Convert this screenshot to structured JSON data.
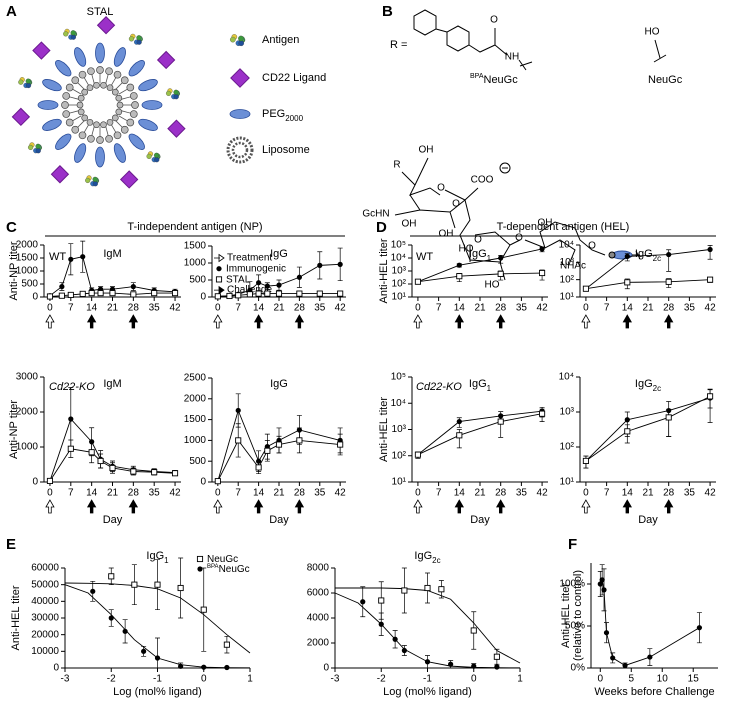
{
  "figure": {
    "panel_letters": [
      "A",
      "B",
      "C",
      "D",
      "E",
      "F"
    ],
    "panel_a": {
      "title": "STAL",
      "legend": [
        "Antigen",
        "CD22 Ligand",
        "PEG",
        "Liposome"
      ],
      "peg_sub": "2000"
    },
    "panel_b": {
      "r_eq": "R =",
      "bpa_sup": "BPA",
      "bpa_name": "NeuGc",
      "neugc": "NeuGc",
      "atoms": [
        "O",
        "NH",
        "HO",
        "R",
        "OH",
        "GcHN",
        "OH",
        "OH",
        "O",
        "COO",
        "O",
        "HO",
        "HO",
        "O",
        "O",
        "OH",
        "NHAc",
        "O"
      ]
    },
    "headers": [
      "T-independent antigen (NP)",
      "T-dependent antigen (HEL)"
    ]
  },
  "chart_data": [
    {
      "type": "line",
      "title": "IgM",
      "label": "WT",
      "ylabel": "Anti-NP titer",
      "connect": true,
      "xlim": [
        -2,
        44
      ],
      "xticks": [
        0,
        7,
        14,
        21,
        28,
        35,
        42
      ],
      "ylim": [
        0,
        2000
      ],
      "yticks": [
        0,
        500,
        1000,
        1500,
        2000
      ],
      "x": [
        0,
        4,
        7,
        11,
        14,
        17,
        21,
        28,
        35,
        42
      ],
      "series": [
        {
          "name": "Immunogenic",
          "marker": "circle",
          "color": "#000",
          "values": [
            50,
            400,
            1450,
            1550,
            250,
            300,
            300,
            400,
            250,
            200
          ],
          "errors": [
            20,
            150,
            600,
            600,
            100,
            100,
            100,
            150,
            100,
            100
          ]
        },
        {
          "name": "STAL",
          "marker": "square",
          "color": "#000",
          "values": [
            20,
            50,
            80,
            120,
            150,
            150,
            150,
            100,
            150,
            150
          ],
          "errors": [
            10,
            20,
            30,
            40,
            40,
            40,
            40,
            40,
            40,
            40
          ]
        }
      ],
      "treatment_label": "Treatment",
      "challenge_label": "Challenge",
      "treatment_days": [
        0
      ],
      "challenge_days": [
        14,
        28
      ]
    },
    {
      "type": "line",
      "title": "IgG",
      "connect": true,
      "xlim": [
        -2,
        44
      ],
      "xticks": [
        0,
        7,
        14,
        21,
        28,
        35,
        42
      ],
      "ylim": [
        0,
        1500
      ],
      "yticks": [
        0,
        500,
        1000,
        1500
      ],
      "x": [
        0,
        4,
        7,
        11,
        14,
        17,
        21,
        28,
        35,
        42
      ],
      "series": [
        {
          "marker": "circle",
          "color": "#000",
          "values": [
            20,
            40,
            80,
            200,
            420,
            320,
            350,
            580,
            930,
            960
          ],
          "errors": [
            10,
            20,
            40,
            250,
            230,
            100,
            150,
            300,
            400,
            480
          ]
        },
        {
          "marker": "square",
          "color": "#000",
          "values": [
            20,
            30,
            50,
            80,
            100,
            100,
            100,
            100,
            100,
            100
          ],
          "errors": [
            5,
            10,
            20,
            30,
            40,
            40,
            40,
            50,
            60,
            70
          ]
        }
      ],
      "treatment_days": [
        0
      ],
      "challenge_days": [
        14,
        28
      ]
    },
    {
      "type": "line",
      "title": "IgM",
      "label": "Cd22-KO",
      "label_italic": true,
      "ylabel": "Anti-NP titer",
      "xlabel": "Day",
      "connect": true,
      "xlim": [
        -2,
        44
      ],
      "xticks": [
        0,
        7,
        14,
        21,
        28,
        35,
        42
      ],
      "ylim": [
        0,
        3000
      ],
      "yticks": [
        0,
        1000,
        2000,
        3000
      ],
      "x": [
        0,
        7,
        14,
        17,
        21,
        28,
        35,
        42
      ],
      "series": [
        {
          "marker": "circle",
          "color": "#000",
          "values": [
            30,
            1800,
            1150,
            650,
            450,
            350,
            300,
            270
          ],
          "errors": [
            20,
            900,
            400,
            250,
            150,
            100,
            80,
            60
          ]
        },
        {
          "marker": "square",
          "color": "#000",
          "values": [
            30,
            950,
            850,
            600,
            400,
            300,
            280,
            250
          ],
          "errors": [
            20,
            250,
            300,
            200,
            150,
            100,
            80,
            60
          ]
        }
      ],
      "treatment_days": [
        0
      ],
      "challenge_days": [
        14,
        28
      ]
    },
    {
      "type": "line",
      "title": "IgG",
      "xlabel": "Day",
      "connect": true,
      "xlim": [
        -2,
        44
      ],
      "xticks": [
        0,
        7,
        14,
        21,
        28,
        35,
        42
      ],
      "ylim": [
        0,
        2500
      ],
      "yticks": [
        0,
        500,
        1000,
        1500,
        2000,
        2500
      ],
      "x": [
        0,
        7,
        14,
        17,
        21,
        28,
        42
      ],
      "series": [
        {
          "marker": "circle",
          "color": "#000",
          "values": [
            20,
            1720,
            500,
            850,
            1000,
            1250,
            1000
          ],
          "errors": [
            10,
            400,
            250,
            300,
            300,
            350,
            300
          ]
        },
        {
          "marker": "square",
          "color": "#000",
          "values": [
            20,
            1000,
            350,
            750,
            900,
            1000,
            900
          ],
          "errors": [
            10,
            400,
            150,
            250,
            200,
            300,
            250
          ]
        }
      ],
      "treatment_days": [
        0
      ],
      "challenge_days": [
        14,
        28
      ]
    },
    {
      "type": "line",
      "title": "IgG",
      "title_sub": "1",
      "label": "WT",
      "ylabel": "Anti-HEL titer",
      "connect": true,
      "log": true,
      "xlim": [
        -2,
        44
      ],
      "xticks": [
        0,
        7,
        14,
        21,
        28,
        35,
        42
      ],
      "ylim": [
        10,
        100000
      ],
      "yticks": [
        {
          "value": 10,
          "label": "10¹"
        },
        {
          "value": 100,
          "label": "10²"
        },
        {
          "value": 1000,
          "label": "10³"
        },
        {
          "value": 10000,
          "label": "10⁴"
        },
        {
          "value": 100000,
          "label": "10⁵"
        }
      ],
      "x": [
        0,
        14,
        28,
        42
      ],
      "series": [
        {
          "marker": "circle",
          "color": "#000",
          "values": [
            150,
            2800,
            10000,
            50000
          ],
          "errors": [
            50,
            800,
            6000,
            20000
          ]
        },
        {
          "marker": "square",
          "color": "#000",
          "values": [
            150,
            400,
            600,
            700
          ],
          "errors": [
            40,
            250,
            400,
            500
          ]
        }
      ],
      "treatment_days": [
        0
      ],
      "challenge_days": [
        14,
        28
      ]
    },
    {
      "type": "line",
      "title": "IgG",
      "title_sub": "2c",
      "connect": true,
      "log": true,
      "xlim": [
        -2,
        44
      ],
      "xticks": [
        0,
        7,
        14,
        21,
        28,
        35,
        42
      ],
      "ylim": [
        10,
        10000
      ],
      "yticks": [
        {
          "value": 10,
          "label": "10¹"
        },
        {
          "value": 100,
          "label": "10²"
        },
        {
          "value": 1000,
          "label": "10³"
        },
        {
          "value": 10000,
          "label": "10⁴"
        }
      ],
      "x": [
        0,
        14,
        28,
        42
      ],
      "series": [
        {
          "marker": "circle",
          "color": "#000",
          "values": [
            30,
            2200,
            2800,
            5500
          ],
          "errors": [
            5,
            1000,
            2500,
            4000
          ]
        },
        {
          "marker": "square",
          "color": "#000",
          "values": [
            30,
            70,
            75,
            100
          ],
          "errors": [
            5,
            40,
            40,
            30
          ]
        }
      ],
      "treatment_days": [
        0
      ],
      "challenge_days": [
        14,
        28
      ]
    },
    {
      "type": "line",
      "title": "IgG",
      "title_sub": "1",
      "label": "Cd22-KO",
      "label_italic": true,
      "ylabel": "Anti-HEL titer",
      "xlabel": "Day",
      "connect": true,
      "log": true,
      "xlim": [
        -2,
        44
      ],
      "xticks": [
        0,
        7,
        14,
        21,
        28,
        35,
        42
      ],
      "ylim": [
        10,
        100000
      ],
      "yticks": [
        {
          "value": 10,
          "label": "10¹"
        },
        {
          "value": 100,
          "label": "10²"
        },
        {
          "value": 1000,
          "label": "10³"
        },
        {
          "value": 10000,
          "label": "10⁴"
        },
        {
          "value": 100000,
          "label": "10⁵"
        }
      ],
      "x": [
        0,
        14,
        28,
        42
      ],
      "series": [
        {
          "marker": "circle",
          "color": "#000",
          "values": [
            110,
            2000,
            3300,
            5000
          ],
          "errors": [
            30,
            800,
            1500,
            2000
          ]
        },
        {
          "marker": "square",
          "color": "#000",
          "values": [
            110,
            600,
            2000,
            4000
          ],
          "errors": [
            30,
            400,
            1500,
            2000
          ]
        }
      ],
      "treatment_days": [
        0
      ],
      "challenge_days": [
        14,
        28
      ]
    },
    {
      "type": "line",
      "title": "IgG",
      "title_sub": "2c",
      "xlabel": "Day",
      "connect": true,
      "log": true,
      "xlim": [
        -2,
        44
      ],
      "xticks": [
        0,
        7,
        14,
        21,
        28,
        35,
        42
      ],
      "ylim": [
        10,
        10000
      ],
      "yticks": [
        {
          "value": 10,
          "label": "10¹"
        },
        {
          "value": 100,
          "label": "10²"
        },
        {
          "value": 1000,
          "label": "10³"
        },
        {
          "value": 10000,
          "label": "10⁴"
        }
      ],
      "x": [
        0,
        14,
        28,
        42
      ],
      "series": [
        {
          "marker": "circle",
          "color": "#000",
          "values": [
            40,
            600,
            1100,
            2500
          ],
          "errors": [
            15,
            400,
            900,
            2000
          ]
        },
        {
          "marker": "square",
          "color": "#000",
          "values": [
            40,
            280,
            700,
            2800
          ],
          "errors": [
            15,
            150,
            500,
            1500
          ]
        }
      ],
      "treatment_days": [
        0
      ],
      "challenge_days": [
        14,
        28
      ]
    },
    {
      "type": "line",
      "title": "IgG",
      "title_sub": "1",
      "ylabel": "Anti-HEL titer",
      "xlabel": "Log (mol% ligand)",
      "xlim": [
        -3,
        1
      ],
      "xticks": [
        -3,
        -2,
        -1,
        0,
        1
      ],
      "ylim": [
        0,
        60000
      ],
      "yticks": [
        0,
        10000,
        20000,
        30000,
        40000,
        50000,
        60000
      ],
      "series": [
        {
          "name": "NeuGc",
          "marker": "square",
          "color": "#000",
          "x": [
            -2,
            -1.5,
            -1,
            -0.5,
            0,
            0.5
          ],
          "values": [
            55000,
            50000,
            50000,
            48000,
            35000,
            14000
          ],
          "errors": [
            5000,
            12000,
            15000,
            18000,
            25000,
            5000
          ],
          "fit_x": [
            -3,
            -2.5,
            -2,
            -1.5,
            -1,
            -0.5,
            0,
            0.5,
            1
          ],
          "fit_values": [
            51000,
            50800,
            50500,
            49500,
            47500,
            42000,
            32000,
            20000,
            9000
          ]
        },
        {
          "name": "NeuGc",
          "name_sup": "BPA",
          "marker": "circle",
          "color": "#000",
          "x": [
            -2.4,
            -2,
            -1.7,
            -1.3,
            -1,
            -0.5,
            0,
            0.5
          ],
          "values": [
            46000,
            30000,
            22000,
            10000,
            6000,
            1000,
            500,
            300
          ],
          "errors": [
            6000,
            5000,
            7000,
            3000,
            12000,
            2000,
            500,
            300
          ],
          "fit_x": [
            -3,
            -2.5,
            -2,
            -1.5,
            -1,
            -0.5,
            0,
            0.5,
            1
          ],
          "fit_values": [
            50000,
            45000,
            32000,
            17000,
            6000,
            2000,
            500,
            200,
            100
          ]
        }
      ]
    },
    {
      "type": "line",
      "title": "IgG",
      "title_sub": "2c",
      "xlabel": "Log (mol% ligand)",
      "xlim": [
        -3,
        1
      ],
      "xticks": [
        -3,
        -2,
        -1,
        0,
        1
      ],
      "ylim": [
        0,
        8000
      ],
      "yticks": [
        0,
        2000,
        4000,
        6000,
        8000
      ],
      "series": [
        {
          "marker": "square",
          "color": "#000",
          "x": [
            -2,
            -1.5,
            -1,
            -0.7,
            0,
            0.5
          ],
          "values": [
            5400,
            6200,
            6400,
            6300,
            3000,
            900
          ],
          "errors": [
            1500,
            1800,
            1200,
            700,
            1500,
            600
          ],
          "fit_x": [
            -3,
            -2.5,
            -2,
            -1.5,
            -1,
            -0.5,
            0,
            0.5,
            1
          ],
          "fit_values": [
            6400,
            6400,
            6400,
            6350,
            6200,
            5500,
            3600,
            1400,
            400
          ]
        },
        {
          "marker": "circle",
          "color": "#000",
          "x": [
            -2.4,
            -2,
            -1.7,
            -1.5,
            -1,
            -0.5,
            0,
            0.5
          ],
          "values": [
            5300,
            3500,
            2300,
            1400,
            500,
            300,
            150,
            80
          ],
          "errors": [
            1200,
            900,
            700,
            400,
            500,
            300,
            200,
            100
          ],
          "fit_x": [
            -3,
            -2.5,
            -2,
            -1.5,
            -1,
            -0.5,
            0,
            0.5,
            1
          ],
          "fit_values": [
            6000,
            5200,
            3500,
            1500,
            500,
            150,
            50,
            20,
            10
          ]
        }
      ]
    },
    {
      "type": "line",
      "ylabel": "Anti-HEL titer",
      "ylabel2": "(relative to control)",
      "xlabel": "Weeks before Challenge",
      "connect": true,
      "xlim": [
        -1.5,
        19
      ],
      "xticks": [
        0,
        5,
        10,
        15
      ],
      "ylim": [
        0,
        125
      ],
      "yticks": [
        {
          "value": 0,
          "label": "0%"
        },
        {
          "value": 50,
          "label": "50%"
        },
        {
          "value": 100,
          "label": "100%"
        }
      ],
      "x": [
        0,
        0.3,
        0.6,
        1,
        2,
        4,
        8,
        16
      ],
      "series": [
        {
          "marker": "circle",
          "color": "#000",
          "values": [
            100,
            105,
            93,
            42,
            12,
            3,
            13,
            48
          ],
          "errors": [
            15,
            18,
            25,
            12,
            6,
            3,
            10,
            18
          ]
        }
      ]
    }
  ]
}
